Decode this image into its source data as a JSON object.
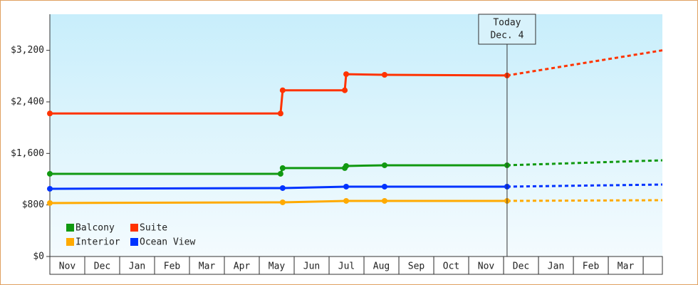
{
  "chart_data": {
    "type": "line",
    "xlim": [
      0,
      17.55
    ],
    "ylim": [
      0,
      3760
    ],
    "yticks": [
      {
        "value": 0,
        "label": "$0"
      },
      {
        "value": 800,
        "label": "$800"
      },
      {
        "value": 1600,
        "label": "$1,600"
      },
      {
        "value": 2400,
        "label": "$2,400"
      },
      {
        "value": 3200,
        "label": "$3,200"
      }
    ],
    "categories": [
      "Nov",
      "Dec",
      "Jan",
      "Feb",
      "Mar",
      "Apr",
      "May",
      "Jun",
      "Jul",
      "Aug",
      "Sep",
      "Oct",
      "Nov",
      "Dec",
      "Jan",
      "Feb",
      "Mar"
    ],
    "today": {
      "x": 13.1,
      "label": "Today",
      "date": "Dec. 4"
    },
    "series": [
      {
        "name": "Balcony",
        "color": "#119911",
        "x": [
          0,
          6.61,
          6.67,
          8.45,
          8.49,
          9.59,
          13.1
        ],
        "values": [
          1283,
          1283,
          1372,
          1372,
          1405,
          1416,
          1416
        ],
        "projected_x": [
          17.55
        ],
        "projected_values": [
          1493
        ]
      },
      {
        "name": "Suite",
        "color": "#ff3300",
        "x": [
          0,
          6.61,
          6.67,
          8.45,
          8.49,
          9.59,
          13.1
        ],
        "values": [
          2220,
          2220,
          2580,
          2580,
          2830,
          2820,
          2810
        ],
        "projected_x": [
          17.55
        ],
        "projected_values": [
          3200
        ]
      },
      {
        "name": "Interior",
        "color": "#ffaa00",
        "x": [
          0,
          6.67,
          8.49,
          9.59,
          13.1
        ],
        "values": [
          830,
          841,
          863,
          863,
          863
        ],
        "projected_x": [
          17.55
        ],
        "projected_values": [
          874
        ]
      },
      {
        "name": "Ocean View",
        "color": "#0033ff",
        "x": [
          0,
          6.67,
          8.49,
          9.59,
          13.1
        ],
        "values": [
          1051,
          1062,
          1084,
          1084,
          1084
        ],
        "projected_x": [
          17.55
        ],
        "projected_values": [
          1117
        ]
      }
    ]
  }
}
